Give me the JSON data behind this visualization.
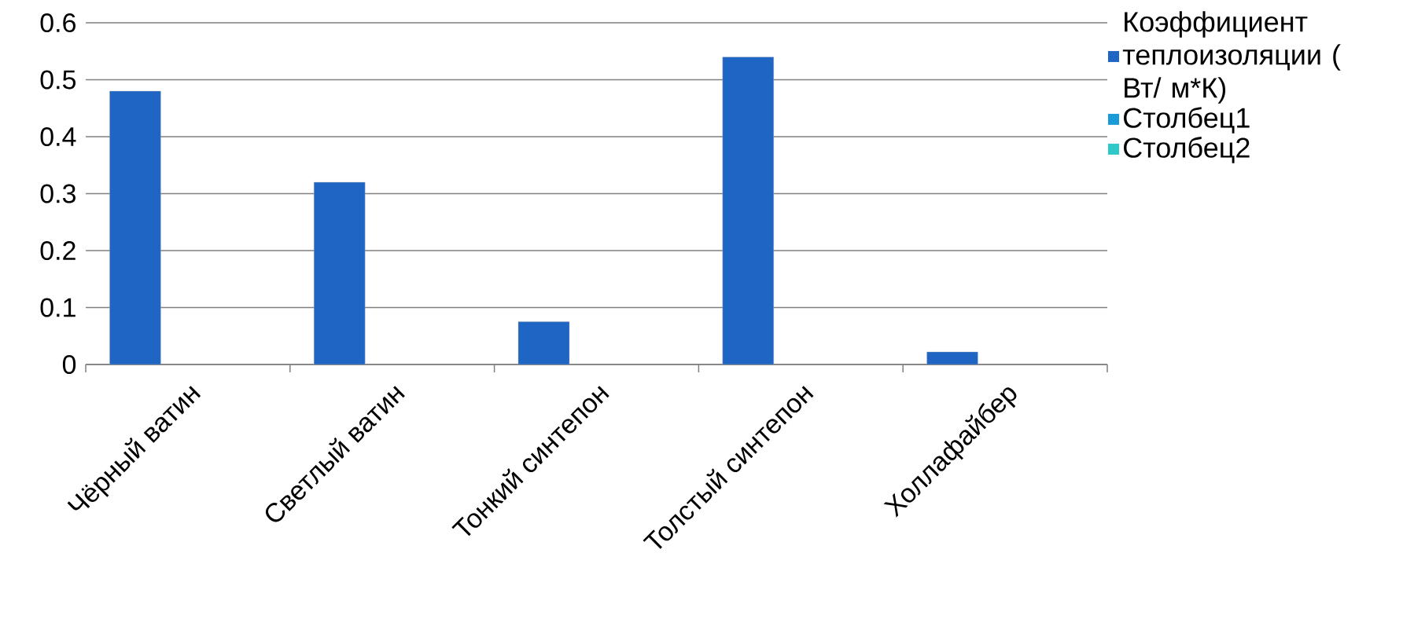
{
  "chart_data": {
    "type": "bar",
    "categories": [
      "Чёрный ватин",
      "Светлый ватин",
      "Тонкий синтепон",
      "Толстый синтепон",
      "Холлафайбер"
    ],
    "series": [
      {
        "name": "Коэффициент теплоизоляции ( Вт/ м*К)",
        "color": "#1f66c4",
        "values": [
          0.48,
          0.32,
          0.075,
          0.54,
          0.022
        ]
      },
      {
        "name": "Столбец1",
        "color": "#1a9ad6",
        "values": [
          null,
          null,
          null,
          null,
          null
        ]
      },
      {
        "name": "Столбец2",
        "color": "#2ec8c8",
        "values": [
          null,
          null,
          null,
          null,
          null
        ]
      }
    ],
    "ylim": [
      0,
      0.6
    ],
    "yticks": [
      0,
      0.1,
      0.2,
      0.3,
      0.4,
      0.5,
      0.6
    ],
    "grid": "y",
    "legend": "right"
  }
}
